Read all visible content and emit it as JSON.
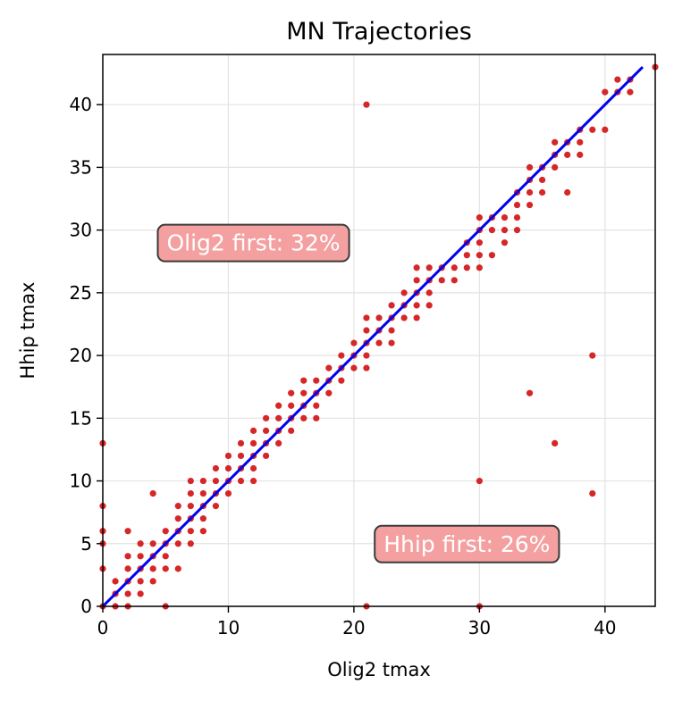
{
  "chart_data": {
    "type": "scatter",
    "title": "MN Trajectories",
    "xlabel": "Olig2 tmax",
    "ylabel": "Hhip tmax",
    "xlim": [
      0,
      44
    ],
    "ylim": [
      0,
      44
    ],
    "xticks": [
      0,
      10,
      20,
      30,
      40
    ],
    "yticks": [
      0,
      5,
      10,
      15,
      20,
      25,
      30,
      35,
      40
    ],
    "grid": true,
    "point_color": "#d62728",
    "line_color": "#0000ee",
    "reference_line": {
      "x": [
        0,
        43
      ],
      "y": [
        0,
        43
      ]
    },
    "annotations": [
      {
        "text": "Olig2 first: 32%",
        "x": 12,
        "y": 29,
        "box_color": "#f4a0a0"
      },
      {
        "text": "Hhip first: 26%",
        "x": 29,
        "y": 5,
        "box_color": "#f4a0a0"
      }
    ],
    "points": [
      [
        0,
        0
      ],
      [
        0,
        3
      ],
      [
        0,
        5
      ],
      [
        0,
        6
      ],
      [
        0,
        8
      ],
      [
        0,
        13
      ],
      [
        1,
        0
      ],
      [
        1,
        1
      ],
      [
        1,
        2
      ],
      [
        2,
        0
      ],
      [
        2,
        1
      ],
      [
        2,
        2
      ],
      [
        2,
        3
      ],
      [
        2,
        4
      ],
      [
        2,
        6
      ],
      [
        3,
        1
      ],
      [
        3,
        2
      ],
      [
        3,
        3
      ],
      [
        3,
        4
      ],
      [
        3,
        5
      ],
      [
        4,
        2
      ],
      [
        4,
        3
      ],
      [
        4,
        4
      ],
      [
        4,
        5
      ],
      [
        4,
        9
      ],
      [
        5,
        0
      ],
      [
        5,
        3
      ],
      [
        5,
        4
      ],
      [
        5,
        5
      ],
      [
        5,
        6
      ],
      [
        6,
        3
      ],
      [
        6,
        5
      ],
      [
        6,
        6
      ],
      [
        6,
        7
      ],
      [
        6,
        8
      ],
      [
        7,
        5
      ],
      [
        7,
        6
      ],
      [
        7,
        7
      ],
      [
        7,
        8
      ],
      [
        7,
        9
      ],
      [
        7,
        10
      ],
      [
        8,
        6
      ],
      [
        8,
        7
      ],
      [
        8,
        8
      ],
      [
        8,
        9
      ],
      [
        8,
        10
      ],
      [
        9,
        8
      ],
      [
        9,
        9
      ],
      [
        9,
        10
      ],
      [
        9,
        11
      ],
      [
        10,
        9
      ],
      [
        10,
        10
      ],
      [
        10,
        11
      ],
      [
        10,
        12
      ],
      [
        11,
        10
      ],
      [
        11,
        11
      ],
      [
        11,
        12
      ],
      [
        11,
        13
      ],
      [
        12,
        10
      ],
      [
        12,
        11
      ],
      [
        12,
        12
      ],
      [
        12,
        13
      ],
      [
        12,
        14
      ],
      [
        13,
        12
      ],
      [
        13,
        13
      ],
      [
        13,
        14
      ],
      [
        13,
        15
      ],
      [
        14,
        13
      ],
      [
        14,
        14
      ],
      [
        14,
        15
      ],
      [
        14,
        16
      ],
      [
        15,
        14
      ],
      [
        15,
        15
      ],
      [
        15,
        16
      ],
      [
        15,
        17
      ],
      [
        16,
        15
      ],
      [
        16,
        16
      ],
      [
        16,
        17
      ],
      [
        16,
        18
      ],
      [
        17,
        15
      ],
      [
        17,
        16
      ],
      [
        17,
        17
      ],
      [
        17,
        18
      ],
      [
        18,
        17
      ],
      [
        18,
        18
      ],
      [
        18,
        19
      ],
      [
        19,
        18
      ],
      [
        19,
        19
      ],
      [
        19,
        20
      ],
      [
        20,
        19
      ],
      [
        20,
        20
      ],
      [
        20,
        21
      ],
      [
        21,
        0
      ],
      [
        21,
        19
      ],
      [
        21,
        20
      ],
      [
        21,
        21
      ],
      [
        21,
        22
      ],
      [
        21,
        23
      ],
      [
        21,
        40
      ],
      [
        22,
        21
      ],
      [
        22,
        22
      ],
      [
        22,
        23
      ],
      [
        23,
        21
      ],
      [
        23,
        22
      ],
      [
        23,
        23
      ],
      [
        23,
        24
      ],
      [
        24,
        23
      ],
      [
        24,
        24
      ],
      [
        24,
        25
      ],
      [
        25,
        23
      ],
      [
        25,
        24
      ],
      [
        25,
        25
      ],
      [
        25,
        26
      ],
      [
        25,
        27
      ],
      [
        26,
        24
      ],
      [
        26,
        25
      ],
      [
        26,
        26
      ],
      [
        26,
        27
      ],
      [
        27,
        26
      ],
      [
        27,
        27
      ],
      [
        28,
        26
      ],
      [
        28,
        27
      ],
      [
        29,
        27
      ],
      [
        29,
        28
      ],
      [
        29,
        29
      ],
      [
        30,
        0
      ],
      [
        30,
        10
      ],
      [
        30,
        27
      ],
      [
        30,
        28
      ],
      [
        30,
        29
      ],
      [
        30,
        30
      ],
      [
        30,
        31
      ],
      [
        31,
        28
      ],
      [
        31,
        30
      ],
      [
        31,
        31
      ],
      [
        32,
        29
      ],
      [
        32,
        30
      ],
      [
        32,
        31
      ],
      [
        33,
        30
      ],
      [
        33,
        31
      ],
      [
        33,
        32
      ],
      [
        33,
        33
      ],
      [
        34,
        17
      ],
      [
        34,
        32
      ],
      [
        34,
        33
      ],
      [
        34,
        34
      ],
      [
        34,
        35
      ],
      [
        35,
        33
      ],
      [
        35,
        34
      ],
      [
        35,
        35
      ],
      [
        36,
        13
      ],
      [
        36,
        35
      ],
      [
        36,
        36
      ],
      [
        36,
        37
      ],
      [
        37,
        33
      ],
      [
        37,
        36
      ],
      [
        37,
        37
      ],
      [
        38,
        36
      ],
      [
        38,
        37
      ],
      [
        38,
        38
      ],
      [
        39,
        9
      ],
      [
        39,
        20
      ],
      [
        39,
        38
      ],
      [
        40,
        38
      ],
      [
        40,
        41
      ],
      [
        41,
        41
      ],
      [
        41,
        42
      ],
      [
        42,
        41
      ],
      [
        42,
        42
      ],
      [
        44,
        43
      ]
    ]
  }
}
